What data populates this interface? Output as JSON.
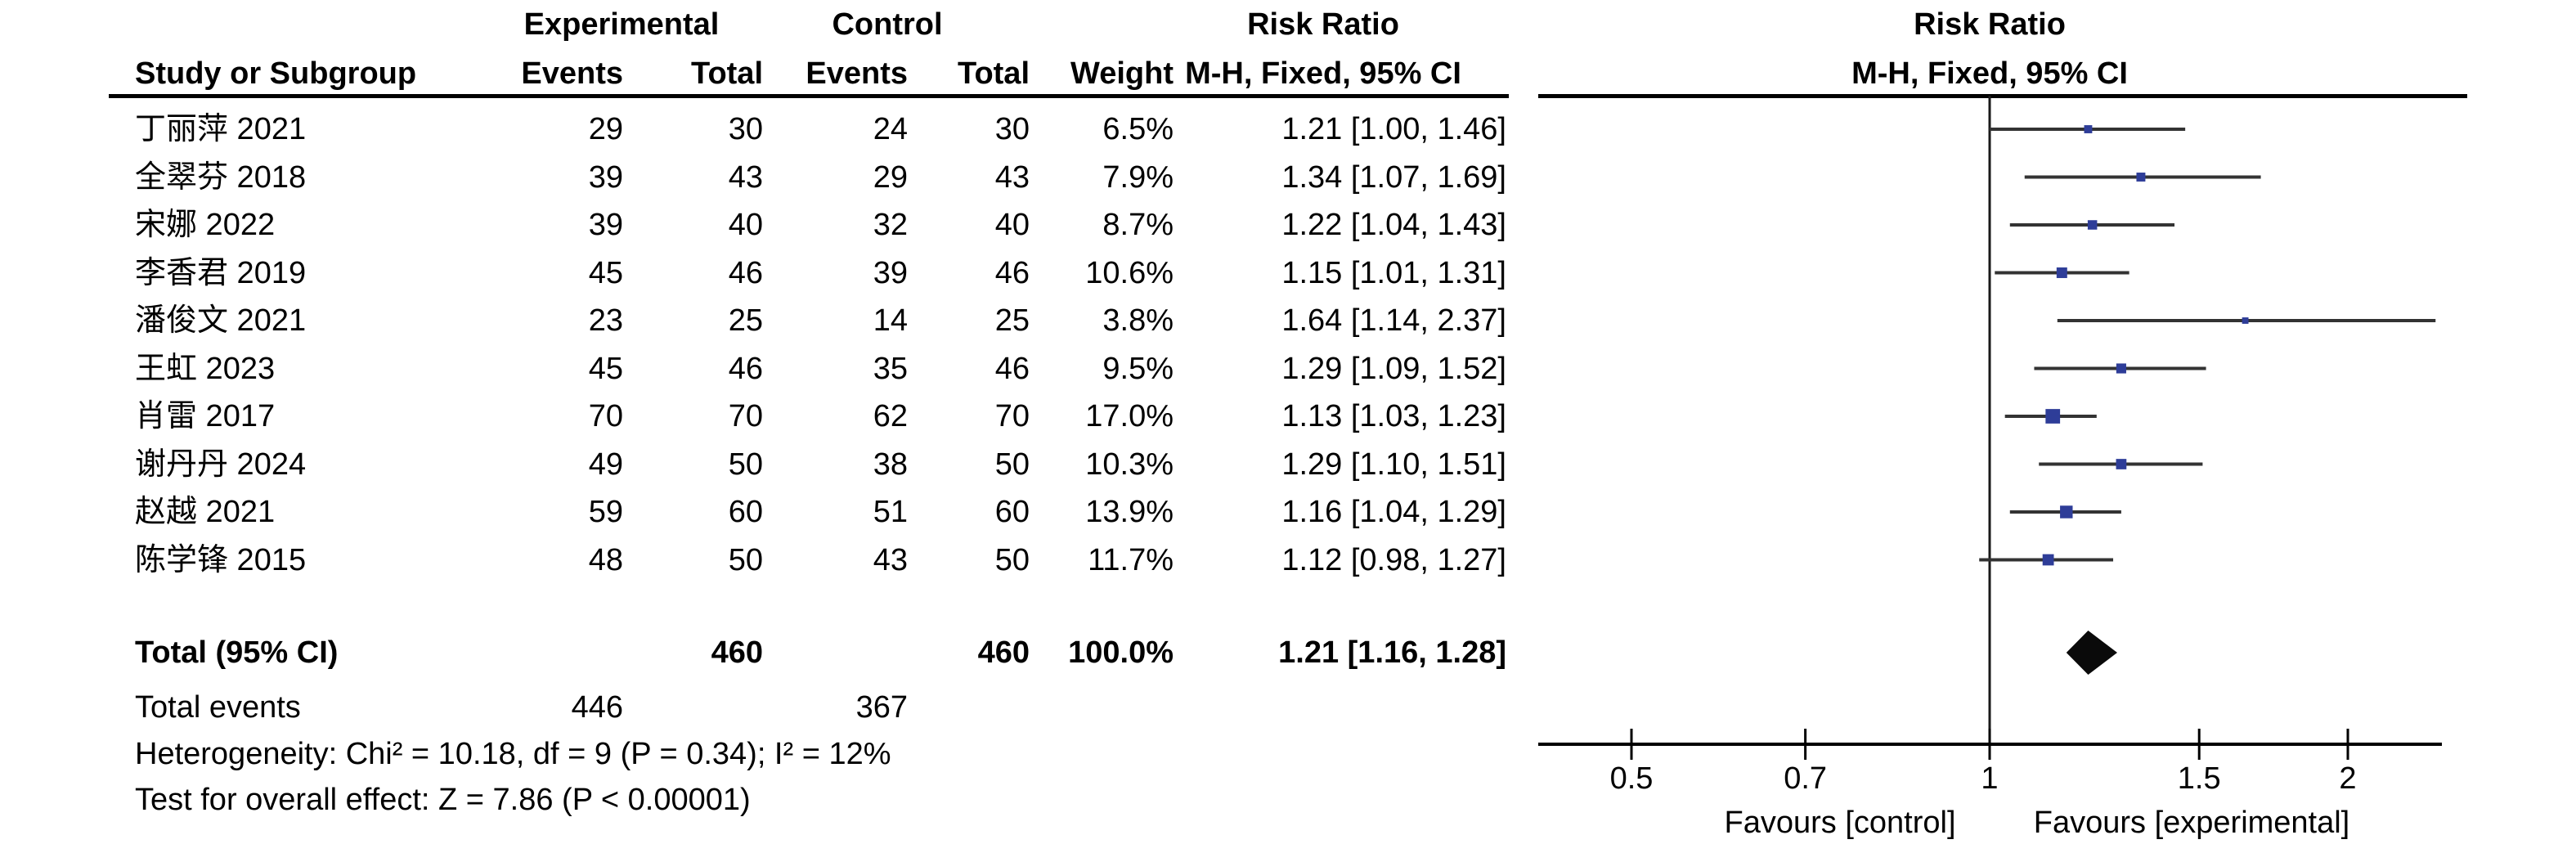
{
  "table": {
    "group_headers": {
      "experimental": "Experimental",
      "control": "Control",
      "risk_ratio": "Risk Ratio"
    },
    "col_headers": {
      "study": "Study or Subgroup",
      "events_exp": "Events",
      "total_exp": "Total",
      "events_ctl": "Events",
      "total_ctl": "Total",
      "weight": "Weight",
      "mh_fixed_ci": "M-H, Fixed, 95% CI"
    },
    "total_row": {
      "label": "Total (95% CI)",
      "total_exp": "460",
      "total_ctl": "460",
      "weight": "100.0%",
      "ci_text": "1.21 [1.16, 1.28]"
    },
    "total_events_row": {
      "label": "Total events",
      "events_exp": "446",
      "events_ctl": "367"
    },
    "heterogeneity_line": "Heterogeneity: Chi² = 10.18, df = 9 (P = 0.34); I² = 12%",
    "overall_effect_line": "Test for overall effect: Z = 7.86 (P < 0.00001)"
  },
  "plot": {
    "header_line1": "Risk Ratio",
    "header_line2": "M-H, Fixed, 95% CI",
    "favours_left": "Favours [control]",
    "favours_right": "Favours [experimental]",
    "marker_color": "#2e3d98",
    "ci_line_color": "#333333",
    "diamond_color": "#0a0a0a",
    "axis_color": "#000000",
    "ticks": [
      {
        "label": "0.5",
        "value": 0.5
      },
      {
        "label": "0.7",
        "value": 0.7
      },
      {
        "label": "1",
        "value": 1
      },
      {
        "label": "1.5",
        "value": 1.5
      },
      {
        "label": "2",
        "value": 2
      }
    ]
  },
  "chart_data": {
    "type": "forest",
    "effect_measure": "Risk Ratio",
    "method": "M-H, Fixed, 95% CI",
    "x_scale": "log",
    "x_ticks": [
      0.5,
      0.7,
      1,
      1.5,
      2
    ],
    "x_range": [
      0.42,
      2.4
    ],
    "studies": [
      {
        "study": "丁丽萍 2021",
        "events_exp": 29,
        "total_exp": 30,
        "events_ctl": 24,
        "total_ctl": 30,
        "weight": "6.5%",
        "weight_val": 6.5,
        "rr": 1.21,
        "ci_low": 1.0,
        "ci_high": 1.46,
        "ci_text": "1.21 [1.00, 1.46]"
      },
      {
        "study": "全翠芬 2018",
        "events_exp": 39,
        "total_exp": 43,
        "events_ctl": 29,
        "total_ctl": 43,
        "weight": "7.9%",
        "weight_val": 7.9,
        "rr": 1.34,
        "ci_low": 1.07,
        "ci_high": 1.69,
        "ci_text": "1.34 [1.07, 1.69]"
      },
      {
        "study": "宋娜 2022",
        "events_exp": 39,
        "total_exp": 40,
        "events_ctl": 32,
        "total_ctl": 40,
        "weight": "8.7%",
        "weight_val": 8.7,
        "rr": 1.22,
        "ci_low": 1.04,
        "ci_high": 1.43,
        "ci_text": "1.22 [1.04, 1.43]"
      },
      {
        "study": "李香君 2019",
        "events_exp": 45,
        "total_exp": 46,
        "events_ctl": 39,
        "total_ctl": 46,
        "weight": "10.6%",
        "weight_val": 10.6,
        "rr": 1.15,
        "ci_low": 1.01,
        "ci_high": 1.31,
        "ci_text": "1.15 [1.01, 1.31]"
      },
      {
        "study": "潘俊文 2021",
        "events_exp": 23,
        "total_exp": 25,
        "events_ctl": 14,
        "total_ctl": 25,
        "weight": "3.8%",
        "weight_val": 3.8,
        "rr": 1.64,
        "ci_low": 1.14,
        "ci_high": 2.37,
        "ci_text": "1.64 [1.14, 2.37]"
      },
      {
        "study": "王虹 2023",
        "events_exp": 45,
        "total_exp": 46,
        "events_ctl": 35,
        "total_ctl": 46,
        "weight": "9.5%",
        "weight_val": 9.5,
        "rr": 1.29,
        "ci_low": 1.09,
        "ci_high": 1.52,
        "ci_text": "1.29 [1.09, 1.52]"
      },
      {
        "study": "肖雷 2017",
        "events_exp": 70,
        "total_exp": 70,
        "events_ctl": 62,
        "total_ctl": 70,
        "weight": "17.0%",
        "weight_val": 17.0,
        "rr": 1.13,
        "ci_low": 1.03,
        "ci_high": 1.23,
        "ci_text": "1.13 [1.03, 1.23]"
      },
      {
        "study": "谢丹丹 2024",
        "events_exp": 49,
        "total_exp": 50,
        "events_ctl": 38,
        "total_ctl": 50,
        "weight": "10.3%",
        "weight_val": 10.3,
        "rr": 1.29,
        "ci_low": 1.1,
        "ci_high": 1.51,
        "ci_text": "1.29 [1.10, 1.51]"
      },
      {
        "study": "赵越 2021",
        "events_exp": 59,
        "total_exp": 60,
        "events_ctl": 51,
        "total_ctl": 60,
        "weight": "13.9%",
        "weight_val": 13.9,
        "rr": 1.16,
        "ci_low": 1.04,
        "ci_high": 1.29,
        "ci_text": "1.16 [1.04, 1.29]"
      },
      {
        "study": "陈学锋 2015",
        "events_exp": 48,
        "total_exp": 50,
        "events_ctl": 43,
        "total_ctl": 50,
        "weight": "11.7%",
        "weight_val": 11.7,
        "rr": 1.12,
        "ci_low": 0.98,
        "ci_high": 1.27,
        "ci_text": "1.12 [0.98, 1.27]"
      }
    ],
    "total": {
      "label": "Total (95% CI)",
      "total_exp": 460,
      "total_ctl": 460,
      "weight": "100.0%",
      "rr": 1.21,
      "ci_low": 1.16,
      "ci_high": 1.28,
      "ci_text": "1.21 [1.16, 1.28]",
      "total_events_exp": 446,
      "total_events_ctl": 367
    },
    "heterogeneity": "Chi² = 10.18, df = 9 (P = 0.34); I² = 12%",
    "overall_effect": "Z = 7.86 (P < 0.00001)",
    "favours": [
      "Favours [control]",
      "Favours [experimental]"
    ]
  }
}
